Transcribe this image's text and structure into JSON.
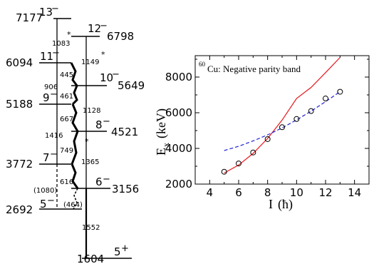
{
  "level_scheme": {
    "levels": [
      {
        "energy": "7177",
        "spin": "13",
        "parity": "−",
        "side": "left"
      },
      {
        "energy": "6798",
        "spin": "12",
        "parity": "−",
        "side": "right"
      },
      {
        "energy": "6094",
        "spin": "11",
        "parity": "−",
        "side": "left"
      },
      {
        "energy": "5649",
        "spin": "10",
        "parity": "−",
        "side": "right"
      },
      {
        "energy": "5188",
        "spin": "9",
        "parity": "−",
        "side": "left"
      },
      {
        "energy": "4521",
        "spin": "8",
        "parity": "−",
        "side": "right"
      },
      {
        "energy": "3772",
        "spin": "7",
        "parity": "−",
        "side": "left"
      },
      {
        "energy": "3156",
        "spin": "6",
        "parity": "−",
        "side": "right"
      },
      {
        "energy": "2692",
        "spin": "5",
        "parity": "−",
        "side": "left"
      },
      {
        "energy": "1604",
        "spin": "5",
        "parity": "+",
        "side": "right"
      }
    ],
    "transitions": [
      {
        "label": "1083",
        "star": true
      },
      {
        "label": "1149",
        "star": true
      },
      {
        "label": "906",
        "star": false
      },
      {
        "label": "445",
        "star": false
      },
      {
        "label": "461",
        "star": false
      },
      {
        "label": "1128",
        "star": false
      },
      {
        "label": "667",
        "star": false
      },
      {
        "label": "1416",
        "star": false
      },
      {
        "label": "749",
        "star": true
      },
      {
        "label": "1365",
        "star": false
      },
      {
        "label": "616",
        "star": false
      },
      {
        "label": "(1080)",
        "star": false
      },
      {
        "label": "(464)",
        "star": false
      },
      {
        "label": "1552",
        "star": false
      }
    ],
    "star_symbol": "*"
  },
  "chart_data": {
    "type": "scatter",
    "annotation": {
      "mass_number": "60",
      "text": "Cu: Negative parity band"
    },
    "xlabel": {
      "main": "I",
      "unit": "(ħ)"
    },
    "ylabel": {
      "main": "E",
      "sub": "x",
      "unit": "(keV)"
    },
    "xlim": [
      3,
      15
    ],
    "ylim": [
      2000,
      9200
    ],
    "xticks": [
      4,
      6,
      8,
      10,
      12,
      14
    ],
    "yticks": [
      2000,
      4000,
      6000,
      8000
    ],
    "grid": false,
    "series": [
      {
        "kind": "points",
        "marker": "open-circle",
        "x": [
          5,
          6,
          7,
          8,
          9,
          10,
          11,
          12,
          13
        ],
        "y": [
          2692,
          3156,
          3772,
          4521,
          5188,
          5649,
          6094,
          6798,
          7177
        ]
      },
      {
        "kind": "fit",
        "style": "solid",
        "color": "#e8141c",
        "x": [
          5,
          6,
          7,
          8,
          9,
          10,
          11,
          12,
          13
        ],
        "y": [
          2620,
          3070,
          3720,
          4560,
          5590,
          6800,
          7420,
          8250,
          9100
        ]
      },
      {
        "kind": "fit",
        "style": "dashed",
        "color": "#1f1fd6",
        "x": [
          5,
          6,
          7,
          8,
          9,
          10,
          11,
          12,
          13
        ],
        "y": [
          3880,
          4120,
          4420,
          4760,
          5150,
          5600,
          6090,
          6620,
          7180
        ]
      }
    ]
  }
}
